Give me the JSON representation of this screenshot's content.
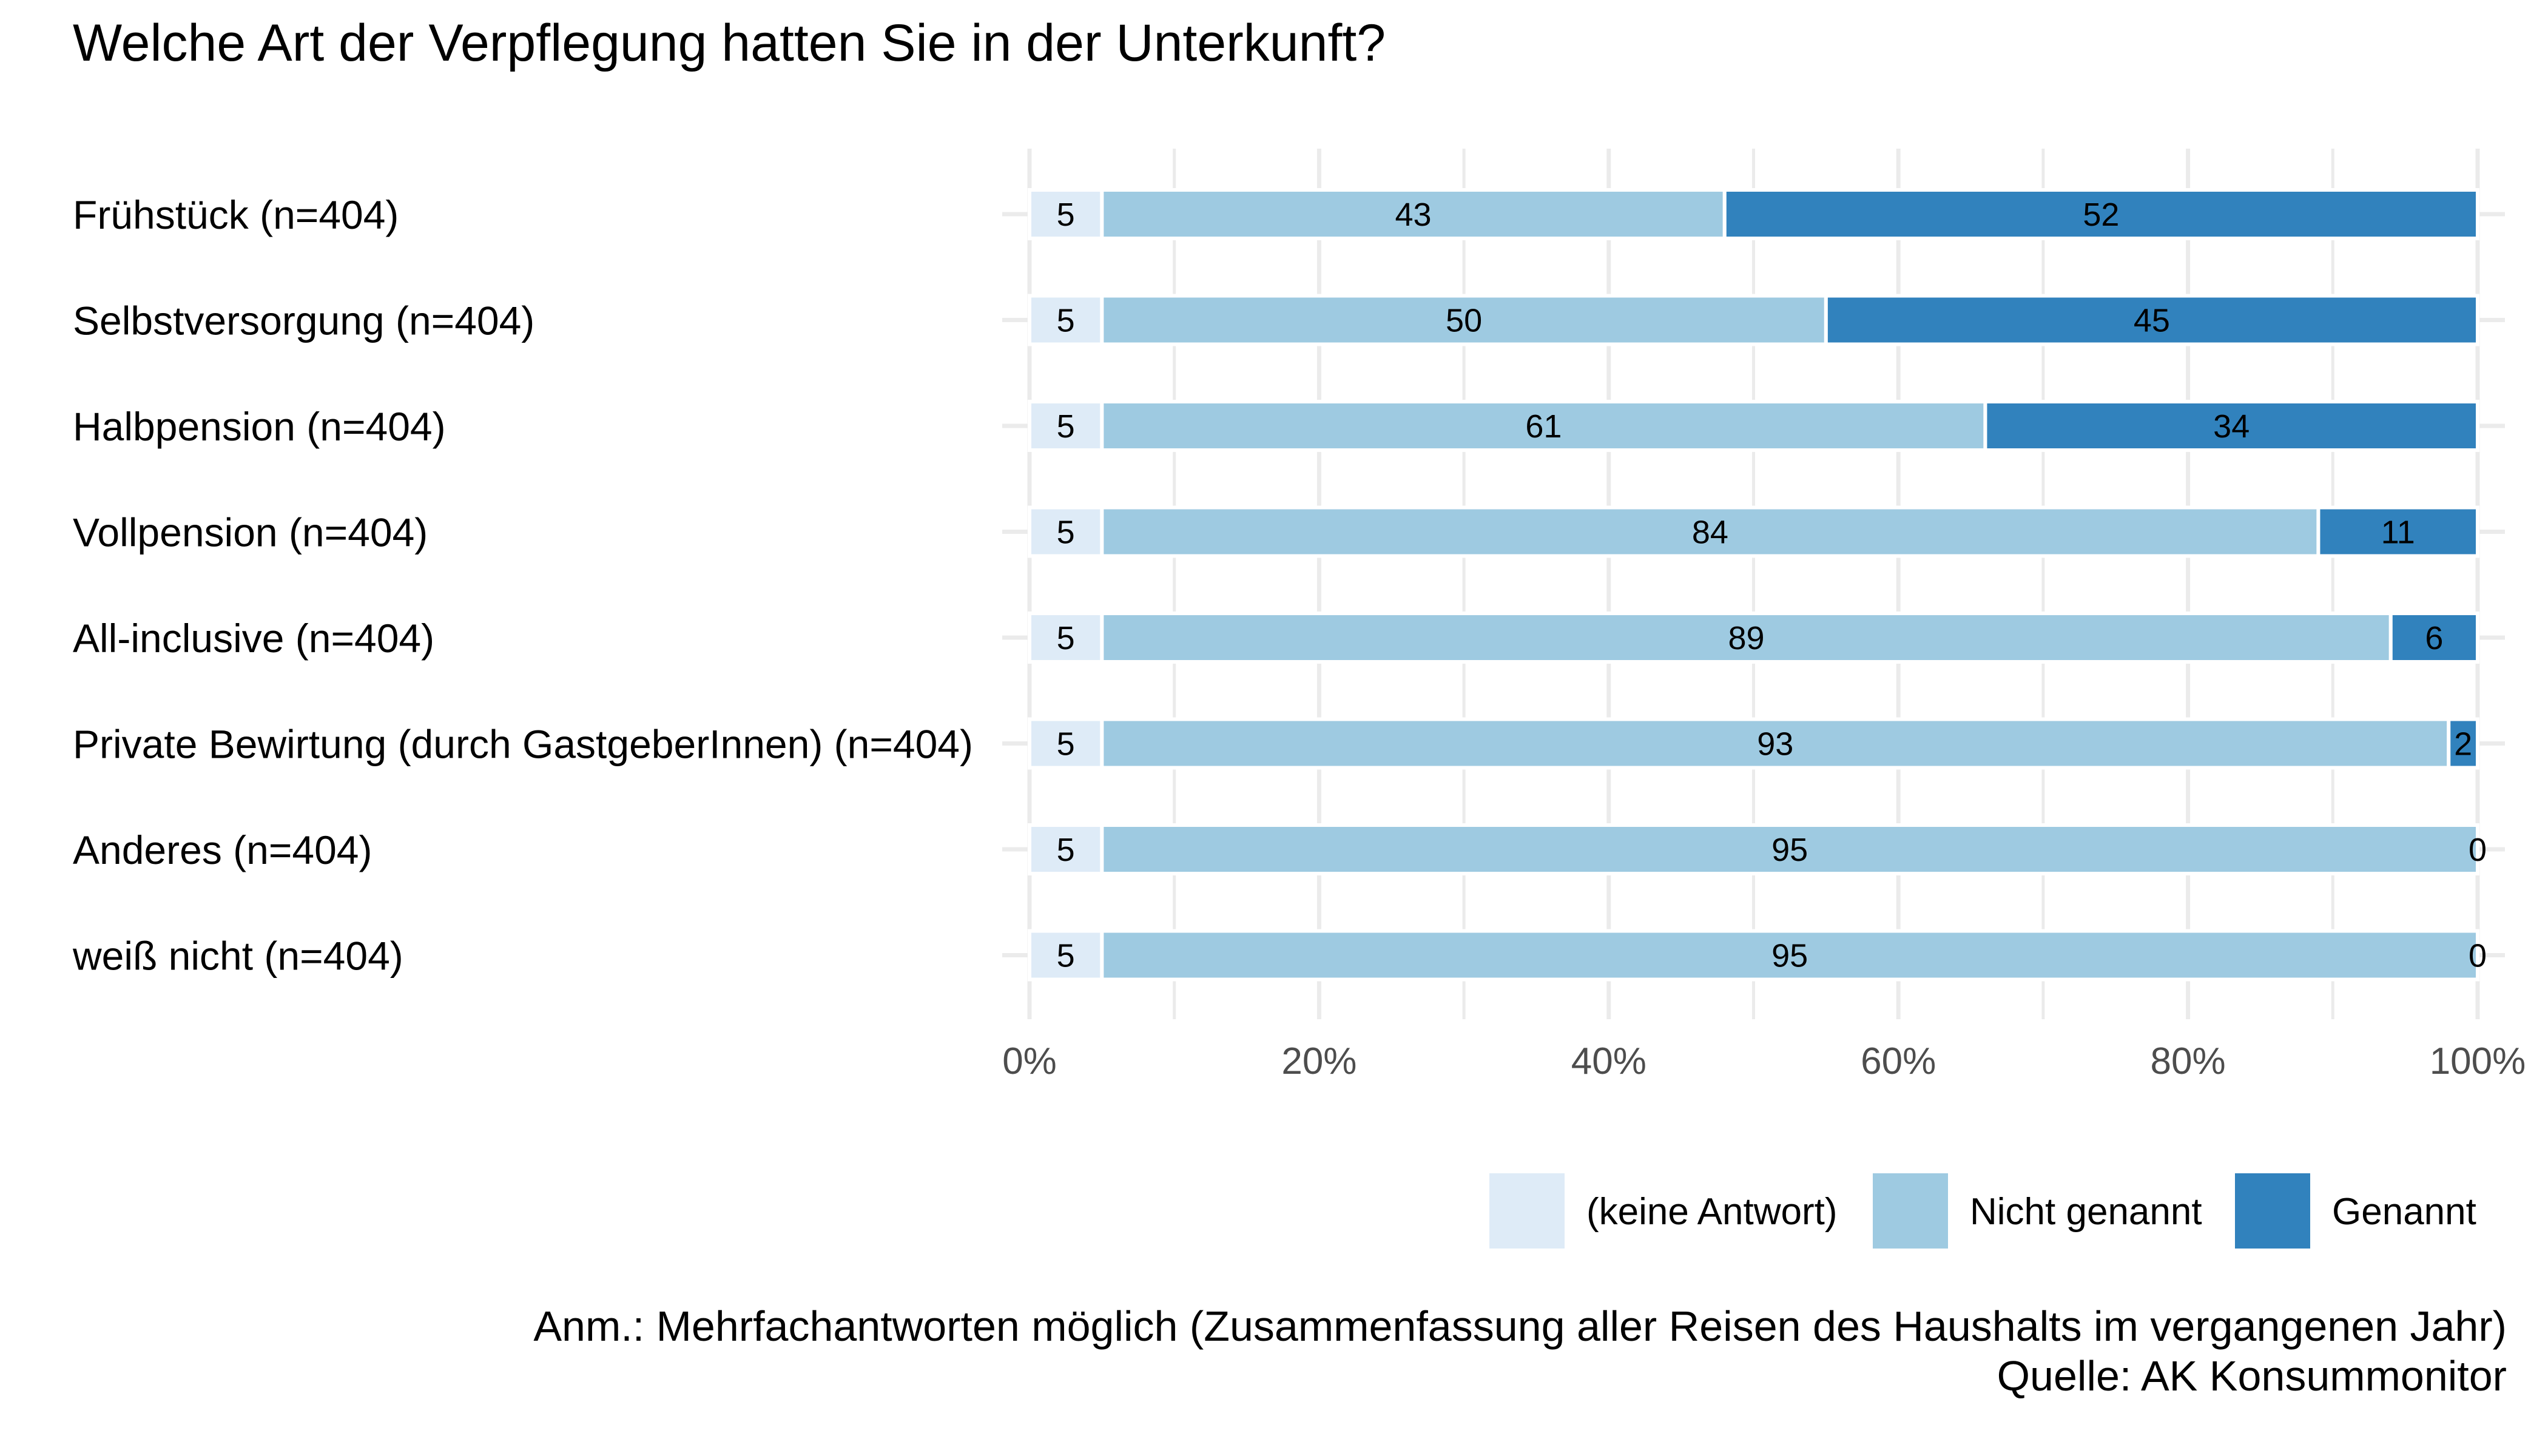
{
  "chart_data": {
    "type": "bar",
    "orientation": "horizontal",
    "stacked": true,
    "percent": true,
    "title": "Welche Art der Verpflegung hatten Sie in der Unterkunft?",
    "xlabel": "",
    "ylabel": "",
    "xlim": [
      0,
      100
    ],
    "x_ticks": [
      "0%",
      "20%",
      "40%",
      "60%",
      "80%",
      "100%"
    ],
    "x_tick_values": [
      0,
      20,
      40,
      60,
      80,
      100
    ],
    "grid": true,
    "legend_position": "bottom-right",
    "categories": [
      "Frühstück (n=404)",
      "Selbstversorgung (n=404)",
      "Halbpension (n=404)",
      "Vollpension (n=404)",
      "All-inclusive (n=404)",
      "Private Bewirtung (durch GastgeberInnen) (n=404)",
      "Anderes (n=404)",
      "weiß nicht (n=404)"
    ],
    "series": [
      {
        "name": "(keine Antwort)",
        "color": "#deebf7",
        "values": [
          5,
          5,
          5,
          5,
          5,
          5,
          5,
          5
        ]
      },
      {
        "name": "Nicht genannt",
        "color": "#9ecae1",
        "values": [
          43,
          50,
          61,
          84,
          89,
          93,
          95,
          95
        ]
      },
      {
        "name": "Genannt",
        "color": "#3182bd",
        "values": [
          52,
          45,
          34,
          11,
          6,
          2,
          0,
          0
        ]
      }
    ],
    "annotations": [
      "Anm.: Mehrfachantworten möglich (Zusammenfassung aller Reisen des Haushalts im vergangenen Jahr)",
      "Quelle: AK Konsummonitor"
    ]
  },
  "colors": {
    "grid": "#ebebeb",
    "tick_text": "#4d4d4d",
    "text": "#000000"
  }
}
